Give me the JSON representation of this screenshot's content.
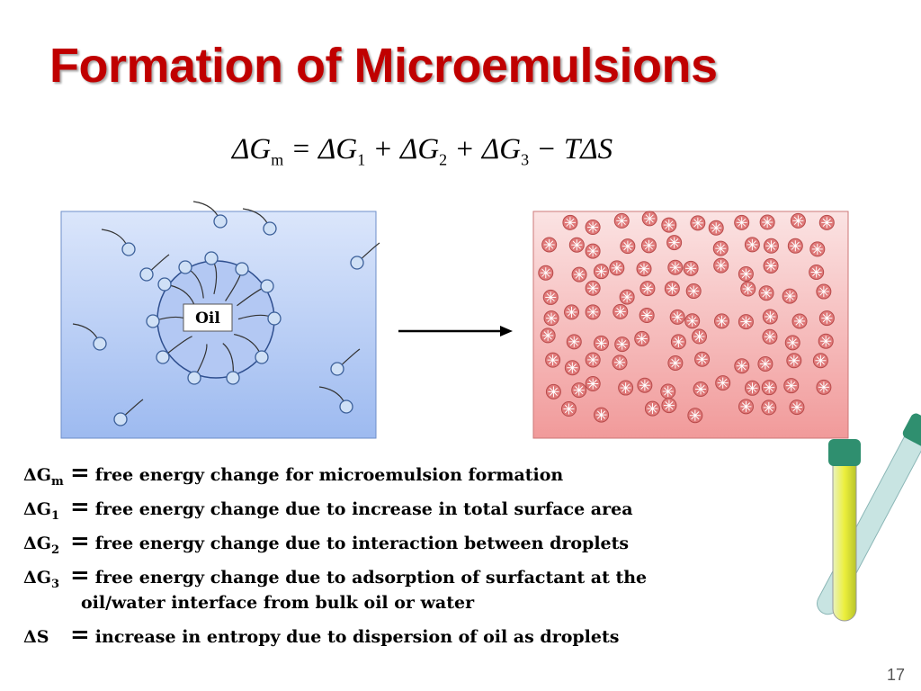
{
  "header": {
    "title": "Formation of Microemulsions"
  },
  "equation": {
    "terms": [
      {
        "text": "ΔG",
        "sub": "m"
      },
      {
        "text": " = ΔG",
        "sub": "1"
      },
      {
        "text": " + ΔG",
        "sub": "2"
      },
      {
        "text": " + ΔG",
        "sub": "3"
      },
      {
        "text": " − TΔS"
      }
    ]
  },
  "diagram": {
    "oil_label": "Oil"
  },
  "definitions": [
    {
      "symbol": "ΔG",
      "sub": "m",
      "op": "=",
      "text": "free energy change for microemulsion formation"
    },
    {
      "symbol": "ΔG",
      "sub": "1",
      "op": "=",
      "text": "free energy change due to increase in total surface area"
    },
    {
      "symbol": "ΔG",
      "sub": "2",
      "op": "=",
      "text": "free energy change due to interaction between droplets"
    },
    {
      "symbol": "ΔG",
      "sub": "3",
      "op": "=",
      "text": "free energy change due to adsorption of surfactant at the",
      "continuation": "oil/water interface from bulk oil or water"
    },
    {
      "symbol": "ΔS",
      "op": "=",
      "text": "increase in entropy due to dispersion of oil as droplets"
    }
  ],
  "footer": {
    "page_number": "17"
  }
}
